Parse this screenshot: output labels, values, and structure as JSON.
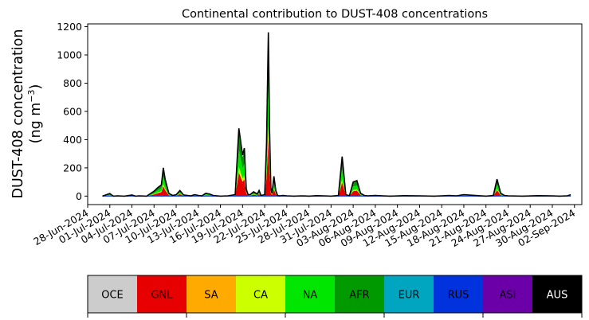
{
  "chart_data": {
    "type": "area",
    "title": "Continental contribution to DUST-408 concentrations",
    "ylabel_line1": "DUST-408 concentration",
    "ylabel_line2_prefix": "(ng m",
    "ylabel_line2_sup": "−3",
    "ylabel_line2_suffix": ")",
    "xlabel": "",
    "xlim": [
      "2024-06-28",
      "2024-09-03"
    ],
    "ylim": [
      -60,
      1220
    ],
    "grid": false,
    "y_ticks": [
      0,
      200,
      400,
      600,
      800,
      1000,
      1200
    ],
    "x_tick_labels": [
      "28-Jun-2024",
      "01-Jul-2024",
      "04-Jul-2024",
      "07-Jul-2024",
      "10-Jul-2024",
      "13-Jul-2024",
      "16-Jul-2024",
      "19-Jul-2024",
      "22-Jul-2024",
      "25-Jul-2024",
      "28-Jul-2024",
      "31-Jul-2024",
      "03-Aug-2024",
      "06-Aug-2024",
      "09-Aug-2024",
      "12-Aug-2024",
      "15-Aug-2024",
      "18-Aug-2024",
      "21-Aug-2024",
      "24-Aug-2024",
      "27-Aug-2024",
      "30-Aug-2024",
      "02-Sep-2024"
    ],
    "x_tick_days": [
      0,
      3,
      6,
      9,
      12,
      15,
      18,
      21,
      24,
      27,
      30,
      33,
      36,
      39,
      42,
      45,
      48,
      51,
      54,
      57,
      60,
      63,
      66
    ],
    "legend": [
      {
        "name": "OCE",
        "color": "#cccccc",
        "text_color": "#000000"
      },
      {
        "name": "GNL",
        "color": "#e60000",
        "text_color": "#000000"
      },
      {
        "name": "SA",
        "color": "#ffaa00",
        "text_color": "#000000"
      },
      {
        "name": "CA",
        "color": "#ccff00",
        "text_color": "#000000"
      },
      {
        "name": "NA",
        "color": "#00e600",
        "text_color": "#000000"
      },
      {
        "name": "AFR",
        "color": "#009900",
        "text_color": "#000000"
      },
      {
        "name": "EUR",
        "color": "#00a5bf",
        "text_color": "#000000"
      },
      {
        "name": "RUS",
        "color": "#0033dd",
        "text_color": "#000000"
      },
      {
        "name": "ASI",
        "color": "#6b00a8",
        "text_color": "#000000"
      },
      {
        "name": "AUS",
        "color": "#000000",
        "text_color": "#ffffff"
      }
    ],
    "total_series": {
      "name": "Total",
      "x": [
        "2024-06-30",
        "2024-07-01",
        "2024-07-01T06",
        "2024-07-01T12",
        "2024-07-02",
        "2024-07-03",
        "2024-07-04",
        "2024-07-04T12",
        "2024-07-05",
        "2024-07-06",
        "2024-07-07",
        "2024-07-07T12",
        "2024-07-08",
        "2024-07-08T06",
        "2024-07-08T12",
        "2024-07-09",
        "2024-07-09T12",
        "2024-07-10",
        "2024-07-10T12",
        "2024-07-11",
        "2024-07-12",
        "2024-07-12T12",
        "2024-07-13",
        "2024-07-13T12",
        "2024-07-14",
        "2024-07-14T12",
        "2024-07-15",
        "2024-07-16",
        "2024-07-17",
        "2024-07-18",
        "2024-07-18T12",
        "2024-07-19",
        "2024-07-19T06",
        "2024-07-19T12",
        "2024-07-19T18",
        "2024-07-20",
        "2024-07-20T12",
        "2024-07-21",
        "2024-07-21T06",
        "2024-07-21T12",
        "2024-07-22",
        "2024-07-22T06",
        "2024-07-22T12",
        "2024-07-22T16",
        "2024-07-22T20",
        "2024-07-23",
        "2024-07-23T06",
        "2024-07-23T12",
        "2024-07-23T18",
        "2024-07-24",
        "2024-07-24T12",
        "2024-07-25",
        "2024-07-26",
        "2024-07-27",
        "2024-07-28",
        "2024-07-29",
        "2024-07-30",
        "2024-07-31",
        "2024-08-01",
        "2024-08-01T12",
        "2024-08-02",
        "2024-08-02T12",
        "2024-08-03",
        "2024-08-03T12",
        "2024-08-04",
        "2024-08-04T12",
        "2024-08-05",
        "2024-08-06",
        "2024-08-07",
        "2024-08-08",
        "2024-08-10",
        "2024-08-12",
        "2024-08-14",
        "2024-08-15",
        "2024-08-16",
        "2024-08-17",
        "2024-08-18",
        "2024-08-20",
        "2024-08-21",
        "2024-08-22",
        "2024-08-22T12",
        "2024-08-23",
        "2024-08-23T12",
        "2024-08-24",
        "2024-08-26",
        "2024-08-28",
        "2024-08-30",
        "2024-08-31",
        "2024-09-01",
        "2024-09-01T12"
      ],
      "values": [
        0,
        18,
        8,
        0,
        2,
        0,
        8,
        0,
        2,
        0,
        35,
        60,
        80,
        200,
        120,
        20,
        5,
        10,
        40,
        8,
        2,
        10,
        5,
        2,
        20,
        15,
        5,
        0,
        2,
        10,
        480,
        290,
        340,
        50,
        10,
        10,
        30,
        15,
        40,
        5,
        10,
        370,
        1160,
        450,
        60,
        20,
        140,
        40,
        5,
        2,
        5,
        2,
        0,
        2,
        0,
        3,
        2,
        0,
        5,
        280,
        10,
        3,
        100,
        110,
        20,
        5,
        2,
        5,
        2,
        0,
        3,
        2,
        0,
        2,
        5,
        2,
        10,
        3,
        0,
        5,
        120,
        20,
        5,
        2,
        0,
        3,
        2,
        0,
        2,
        10
      ]
    }
  }
}
